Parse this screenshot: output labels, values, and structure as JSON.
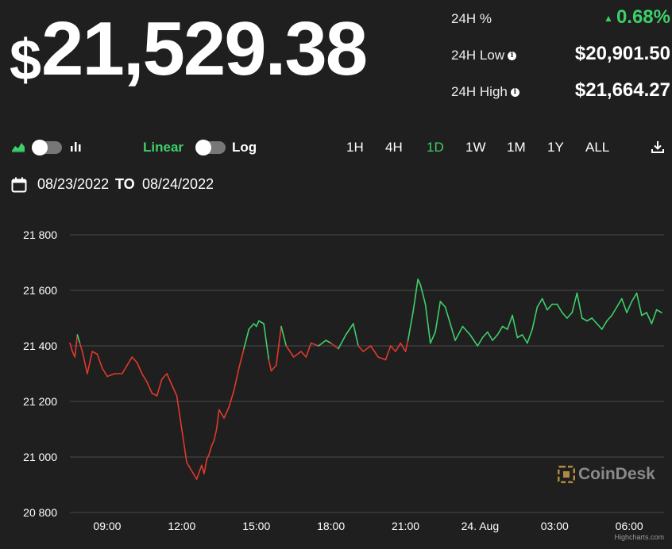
{
  "header": {
    "currency_symbol": "$",
    "price": "21,529.38"
  },
  "stats": {
    "change_label": "24H %",
    "change_arrow": "▲",
    "change_value": "0.68%",
    "low_label": "24H Low",
    "low_value": "$20,901.50",
    "high_label": "24H High",
    "high_value": "$21,664.27",
    "info_glyph": "i"
  },
  "toolbar": {
    "scale_linear": "Linear",
    "scale_log": "Log",
    "ranges": [
      "1H",
      "4H",
      "1D",
      "1W",
      "1M",
      "1Y",
      "ALL"
    ],
    "active_range": "1D"
  },
  "date_range": {
    "from": "08/23/2022",
    "to_label": "TO",
    "to": "08/24/2022"
  },
  "watermark": "CoinDesk",
  "credit": "Highcharts.com",
  "colors": {
    "up": "#3ecf6a",
    "down": "#e03a2c",
    "grid": "#4a4a4a",
    "background": "#1f1f1f"
  },
  "chart_data": {
    "type": "line",
    "ylim": [
      20800,
      21800
    ],
    "yticks": [
      20800,
      21000,
      21200,
      21400,
      21600,
      21800
    ],
    "ytick_labels": [
      "20 800",
      "21 000",
      "21 200",
      "21 400",
      "21 600",
      "21 800"
    ],
    "xlim_hours": [
      7.5,
      31.4
    ],
    "xticks": [
      9,
      12,
      15,
      18,
      21,
      24,
      27,
      30
    ],
    "xtick_labels": [
      "09:00",
      "12:00",
      "15:00",
      "18:00",
      "21:00",
      "24. Aug",
      "03:00",
      "06:00"
    ],
    "x_hours": [
      7.5,
      7.6,
      7.7,
      7.8,
      7.9,
      8.0,
      8.2,
      8.4,
      8.6,
      8.8,
      9.0,
      9.3,
      9.6,
      9.8,
      10.0,
      10.2,
      10.4,
      10.6,
      10.8,
      11.0,
      11.2,
      11.4,
      11.6,
      11.8,
      12.0,
      12.2,
      12.4,
      12.6,
      12.8,
      12.9,
      13.0,
      13.1,
      13.2,
      13.3,
      13.4,
      13.5,
      13.7,
      13.9,
      14.1,
      14.3,
      14.5,
      14.7,
      14.9,
      15.0,
      15.1,
      15.3,
      15.5,
      15.6,
      15.8,
      16.0,
      16.2,
      16.5,
      16.8,
      17.0,
      17.2,
      17.5,
      17.8,
      18.0,
      18.3,
      18.6,
      18.9,
      19.1,
      19.3,
      19.6,
      19.9,
      20.2,
      20.4,
      20.6,
      20.8,
      21.0,
      21.1,
      21.2,
      21.3,
      21.4,
      21.5,
      21.6,
      21.8,
      22.0,
      22.2,
      22.4,
      22.6,
      22.8,
      23.0,
      23.3,
      23.6,
      23.9,
      24.1,
      24.3,
      24.5,
      24.7,
      24.9,
      25.1,
      25.3,
      25.5,
      25.7,
      25.9,
      26.1,
      26.3,
      26.5,
      26.7,
      26.9,
      27.1,
      27.3,
      27.5,
      27.7,
      27.9,
      28.1,
      28.3,
      28.5,
      28.7,
      28.9,
      29.1,
      29.3,
      29.5,
      29.7,
      29.9,
      30.1,
      30.3,
      30.5,
      30.7,
      30.9,
      31.1,
      31.3
    ],
    "y": [
      21410,
      21380,
      21360,
      21440,
      21410,
      21380,
      21300,
      21380,
      21370,
      21320,
      21290,
      21300,
      21300,
      21330,
      21360,
      21340,
      21300,
      21270,
      21230,
      21220,
      21280,
      21300,
      21260,
      21220,
      21100,
      20980,
      20950,
      20920,
      20970,
      20940,
      20990,
      21010,
      21040,
      21060,
      21100,
      21170,
      21140,
      21180,
      21240,
      21320,
      21390,
      21460,
      21480,
      21470,
      21490,
      21480,
      21350,
      21310,
      21330,
      21470,
      21400,
      21360,
      21380,
      21360,
      21410,
      21400,
      21420,
      21410,
      21390,
      21440,
      21480,
      21400,
      21380,
      21400,
      21360,
      21350,
      21400,
      21380,
      21410,
      21380,
      21420,
      21470,
      21520,
      21580,
      21640,
      21620,
      21550,
      21410,
      21450,
      21560,
      21540,
      21480,
      21420,
      21470,
      21440,
      21400,
      21430,
      21450,
      21420,
      21440,
      21470,
      21460,
      21510,
      21430,
      21440,
      21410,
      21460,
      21540,
      21570,
      21530,
      21550,
      21550,
      21520,
      21500,
      21520,
      21590,
      21500,
      21490,
      21500,
      21480,
      21460,
      21490,
      21510,
      21540,
      21570,
      21520,
      21560,
      21590,
      21510,
      21520,
      21480,
      21530,
      21520
    ]
  }
}
